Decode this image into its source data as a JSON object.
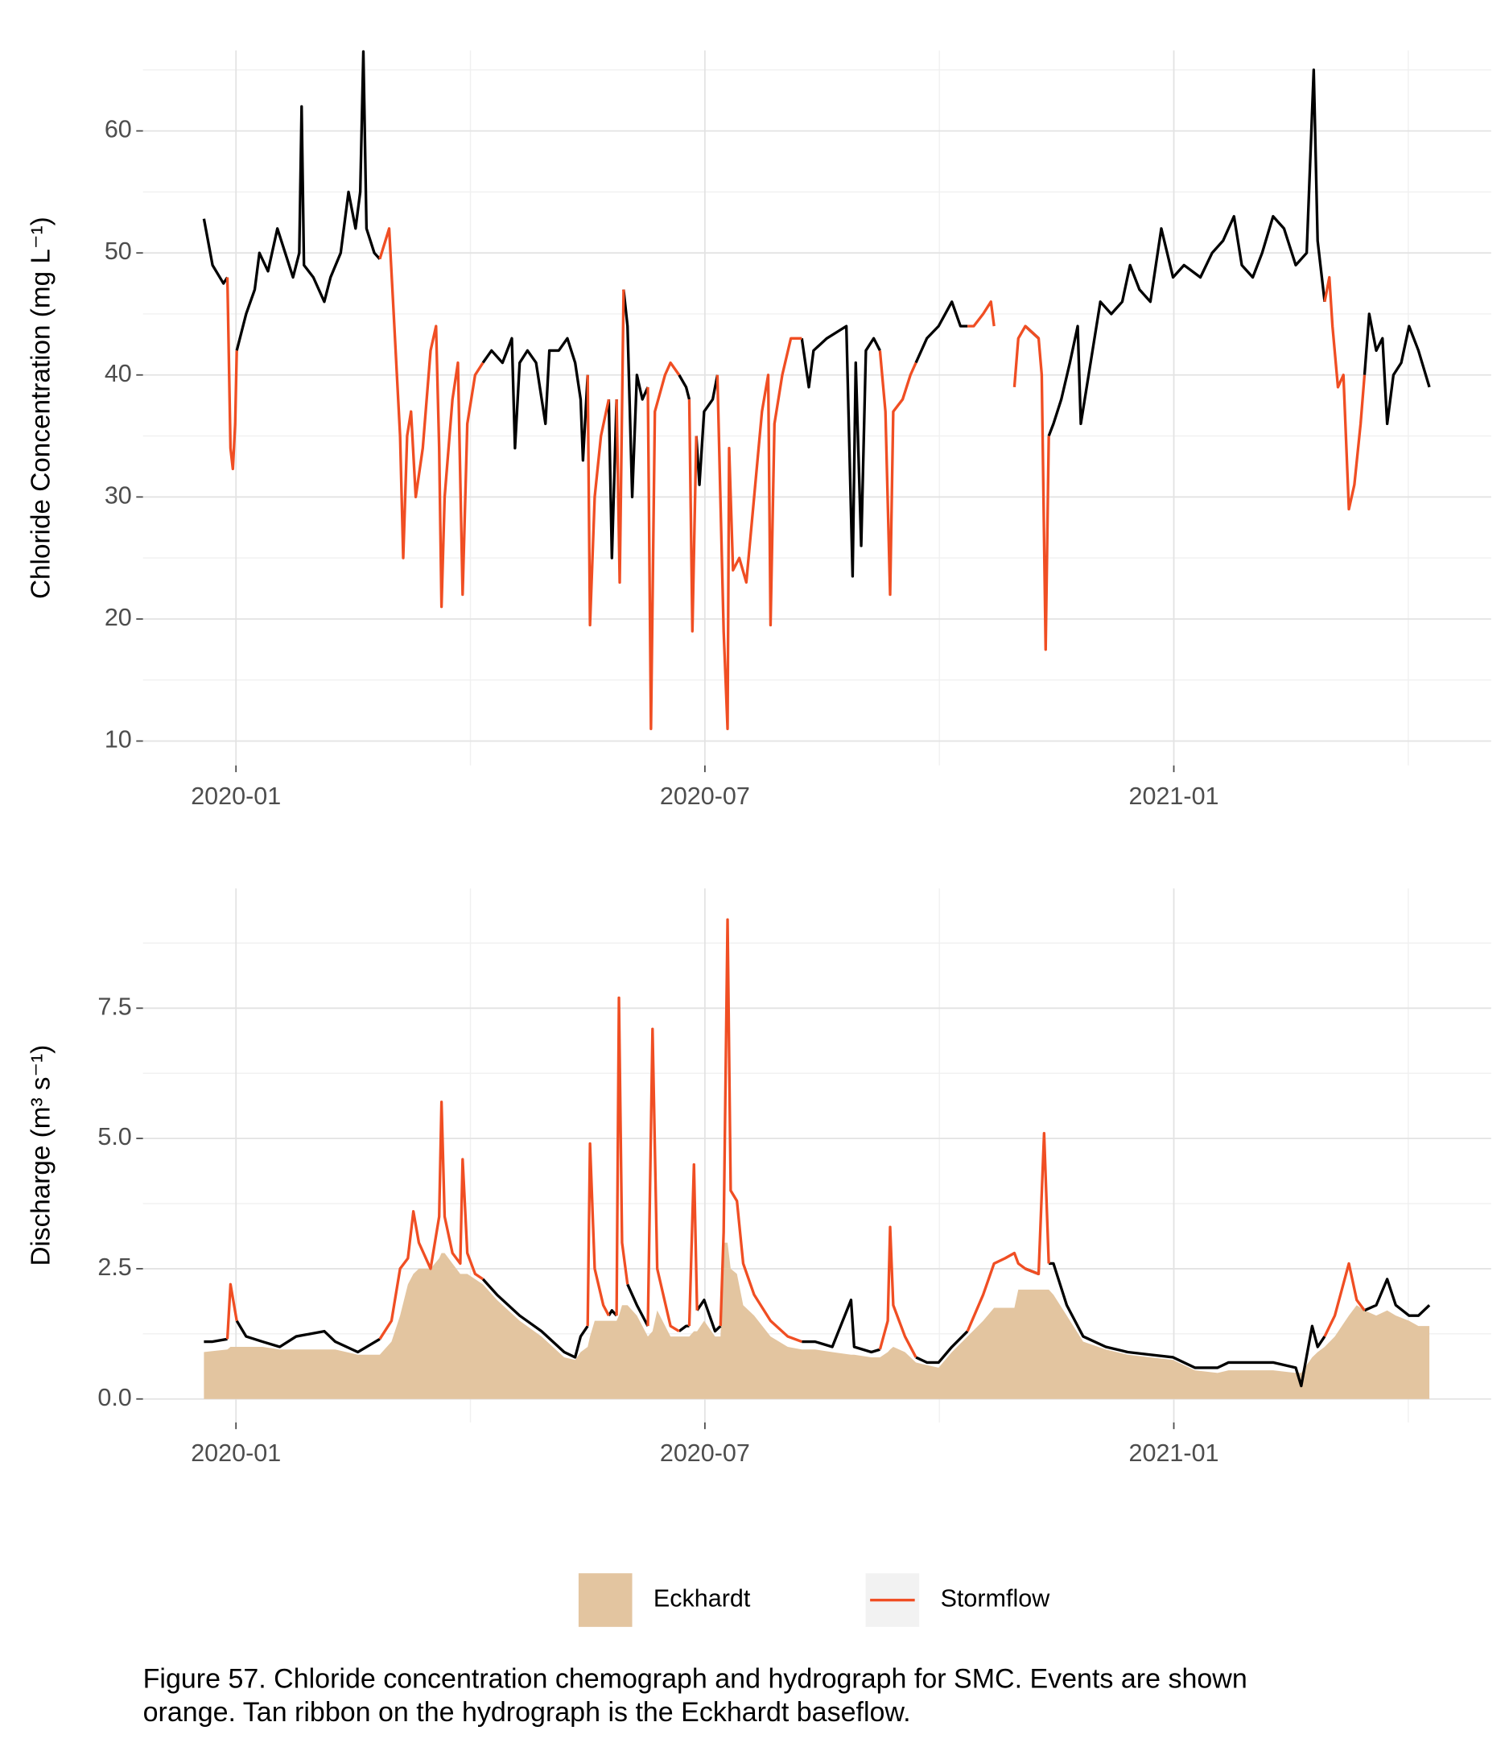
{
  "chart_data": [
    {
      "type": "line",
      "y_label": "Chloride Concentration (mg L⁻¹)",
      "xlim": [
        -1.19,
        16.06
      ],
      "xticks": [
        {
          "value": 0,
          "label": "2020-01"
        },
        {
          "value": 6,
          "label": "2020-07"
        },
        {
          "value": 12,
          "label": "2021-01"
        }
      ],
      "ylim": [
        8,
        66.6
      ],
      "yticks": [
        10,
        20,
        30,
        40,
        50,
        60
      ],
      "grid": true,
      "x": [
        -0.41,
        -0.3,
        -0.16,
        -0.11,
        -0.07,
        -0.04,
        -0.01,
        0.01,
        0.13,
        0.24,
        0.3,
        0.41,
        0.53,
        0.63,
        0.73,
        0.81,
        0.84,
        0.87,
        0.99,
        1.13,
        1.21,
        1.34,
        1.44,
        1.53,
        1.59,
        1.63,
        1.67,
        1.77,
        1.84,
        1.96,
        2.01,
        2.1,
        2.14,
        2.19,
        2.24,
        2.3,
        2.39,
        2.49,
        2.56,
        2.6,
        2.63,
        2.67,
        2.77,
        2.84,
        2.9,
        2.96,
        3.06,
        3.16,
        3.27,
        3.41,
        3.53,
        3.57,
        3.63,
        3.73,
        3.84,
        3.96,
        4.01,
        4.13,
        4.24,
        4.34,
        4.41,
        4.44,
        4.5,
        4.53,
        4.59,
        4.67,
        4.77,
        4.81,
        4.87,
        4.91,
        4.96,
        5.01,
        5.07,
        5.13,
        5.2,
        5.27,
        5.31,
        5.36,
        5.49,
        5.56,
        5.67,
        5.76,
        5.8,
        5.84,
        5.89,
        5.93,
        5.99,
        6.1,
        6.16,
        6.24,
        6.29,
        6.31,
        6.36,
        6.44,
        6.53,
        6.63,
        6.73,
        6.81,
        6.84,
        6.89,
        6.99,
        7.1,
        7.24,
        7.33,
        7.39,
        7.56,
        7.81,
        7.89,
        7.93,
        8.0,
        8.06,
        8.16,
        8.24,
        8.31,
        8.37,
        8.41,
        8.53,
        8.63,
        8.7,
        8.84,
        8.99,
        9.16,
        9.27,
        9.36,
        9.44,
        9.56,
        9.66,
        9.7,
        9.83,
        9.96,
        10.01,
        10.1,
        10.27,
        10.31,
        10.36,
        10.4,
        10.46,
        10.56,
        10.67,
        10.77,
        10.81,
        10.91,
        11.06,
        11.2,
        11.34,
        11.44,
        11.56,
        11.7,
        11.84,
        11.99,
        12.13,
        12.34,
        12.49,
        12.63,
        12.77,
        12.87,
        13.01,
        13.13,
        13.27,
        13.41,
        13.56,
        13.7,
        13.79,
        13.84,
        13.93,
        13.99,
        14.03,
        14.1,
        14.17,
        14.24,
        14.31,
        14.39,
        14.44,
        14.5,
        14.59,
        14.67,
        14.73,
        14.81,
        14.91,
        15.01,
        15.13,
        15.27
      ],
      "series": [
        {
          "color": "#000000",
          "values": [
            52.8,
            49,
            47.5,
            48,
            null,
            null,
            null,
            42,
            45,
            47,
            50,
            48.5,
            52,
            50,
            48,
            50,
            62,
            49,
            48,
            46,
            48,
            50,
            55,
            52,
            55,
            66.5,
            52,
            50,
            49.5,
            null,
            null,
            null,
            null,
            null,
            null,
            null,
            null,
            null,
            null,
            null,
            null,
            null,
            null,
            null,
            null,
            null,
            null,
            41,
            42,
            41,
            43,
            34,
            41,
            42,
            41,
            36,
            42,
            42,
            43,
            41,
            38,
            33,
            40,
            null,
            null,
            null,
            38,
            25,
            38,
            null,
            47,
            44,
            30,
            40,
            38,
            39,
            null,
            null,
            null,
            null,
            40,
            39,
            38,
            null,
            35,
            31,
            37,
            38,
            40,
            null,
            null,
            null,
            null,
            null,
            null,
            null,
            null,
            null,
            null,
            null,
            null,
            null,
            43,
            39,
            42,
            43,
            44,
            23.5,
            41,
            26,
            42,
            43,
            42,
            null,
            null,
            null,
            null,
            null,
            41,
            43,
            44,
            46,
            44,
            44,
            null,
            null,
            null,
            null,
            null,
            null,
            null,
            44,
            43,
            null,
            null,
            35,
            36,
            38,
            41,
            44,
            36,
            40,
            46,
            45,
            46,
            49,
            47,
            46,
            52,
            48,
            49,
            48,
            50,
            51,
            53,
            49,
            48,
            50,
            53,
            52,
            49,
            50,
            65,
            51,
            46,
            null,
            null,
            null,
            null,
            null,
            null,
            null,
            40,
            45,
            42,
            43,
            36,
            40,
            41,
            44,
            42,
            39
          ]
        },
        {
          "color": "#f04e23",
          "values": [
            null,
            null,
            null,
            48,
            34,
            32.3,
            36,
            42,
            null,
            null,
            null,
            null,
            null,
            null,
            null,
            null,
            null,
            null,
            null,
            null,
            null,
            null,
            null,
            null,
            null,
            null,
            null,
            null,
            49.5,
            52,
            46,
            35,
            25,
            35,
            37,
            30,
            34,
            42,
            44,
            34,
            21,
            30,
            38,
            41,
            22,
            36,
            40,
            41,
            null,
            null,
            null,
            null,
            null,
            null,
            null,
            null,
            null,
            null,
            null,
            null,
            null,
            null,
            40,
            19.5,
            30,
            35,
            38,
            null,
            38,
            23,
            47,
            null,
            null,
            null,
            null,
            39,
            11,
            37,
            40,
            41,
            40,
            null,
            38,
            19,
            35,
            null,
            null,
            null,
            40,
            19,
            11,
            34,
            24,
            25,
            23,
            30,
            37,
            40,
            19.5,
            36,
            40,
            43,
            43,
            null,
            null,
            null,
            null,
            null,
            null,
            null,
            null,
            null,
            42,
            37,
            22,
            37,
            38,
            40,
            41,
            null,
            null,
            null,
            null,
            44,
            44,
            45,
            46,
            44,
            null,
            39,
            43,
            44,
            43,
            40,
            17.5,
            35,
            null,
            null,
            null,
            null,
            null,
            null,
            null,
            null,
            null,
            null,
            null,
            null,
            null,
            null,
            null,
            null,
            null,
            null,
            null,
            null,
            null,
            null,
            null,
            null,
            null,
            null,
            null,
            null,
            46,
            48,
            44,
            39,
            40,
            29,
            31,
            36,
            40,
            null,
            null,
            null,
            null,
            null,
            null,
            null,
            null,
            null
          ]
        }
      ]
    },
    {
      "type": "line",
      "y_label": "Discharge (m³ s⁻¹)",
      "xlim": [
        -1.19,
        16.06
      ],
      "xticks": [
        {
          "value": 0,
          "label": "2020-01"
        },
        {
          "value": 6,
          "label": "2020-07"
        },
        {
          "value": 12,
          "label": "2021-01"
        }
      ],
      "ylim": [
        -0.45,
        9.8
      ],
      "yticks": [
        {
          "value": 0,
          "label": "0.0"
        },
        2.5,
        {
          "value": 5,
          "label": "5.0"
        },
        7.5
      ],
      "grid": true,
      "x": [
        -0.41,
        -0.3,
        -0.11,
        -0.07,
        0.01,
        0.13,
        0.34,
        0.56,
        0.77,
        1.13,
        1.27,
        1.56,
        1.84,
        1.99,
        2.1,
        2.2,
        2.27,
        2.34,
        2.49,
        2.6,
        2.63,
        2.67,
        2.77,
        2.87,
        2.9,
        2.96,
        3.06,
        3.16,
        3.34,
        3.63,
        3.91,
        4.2,
        4.34,
        4.41,
        4.5,
        4.53,
        4.59,
        4.7,
        4.77,
        4.81,
        4.87,
        4.9,
        4.94,
        5.01,
        5.13,
        5.27,
        5.33,
        5.39,
        5.56,
        5.67,
        5.76,
        5.8,
        5.86,
        5.9,
        5.99,
        6.13,
        6.2,
        6.24,
        6.29,
        6.33,
        6.41,
        6.49,
        6.63,
        6.84,
        7.06,
        7.24,
        7.41,
        7.63,
        7.87,
        7.91,
        8.13,
        8.24,
        8.34,
        8.37,
        8.41,
        8.56,
        8.7,
        8.84,
        8.99,
        9.16,
        9.36,
        9.56,
        9.7,
        9.84,
        9.96,
        10.01,
        10.1,
        10.27,
        10.34,
        10.4,
        10.46,
        10.63,
        10.84,
        11.13,
        11.41,
        11.7,
        11.99,
        12.27,
        12.56,
        12.7,
        12.99,
        13.27,
        13.56,
        13.63,
        13.77,
        13.84,
        13.93,
        14.06,
        14.24,
        14.34,
        14.44,
        14.59,
        14.73,
        14.84,
        15.01,
        15.13,
        15.27
      ],
      "series": [
        {
          "name": "Eckhardt",
          "type": "area",
          "color": "#e3c5a0",
          "values": [
            0.9,
            0.92,
            0.95,
            1.0,
            1.0,
            1.0,
            1.0,
            0.95,
            0.95,
            0.95,
            0.95,
            0.85,
            0.85,
            1.1,
            1.6,
            2.2,
            2.4,
            2.5,
            2.5,
            2.7,
            2.8,
            2.8,
            2.6,
            2.4,
            2.4,
            2.4,
            2.3,
            2.2,
            1.9,
            1.5,
            1.2,
            0.8,
            0.75,
            0.9,
            1.0,
            1.2,
            1.5,
            1.5,
            1.5,
            1.5,
            1.5,
            1.6,
            1.8,
            1.8,
            1.6,
            1.2,
            1.3,
            1.7,
            1.2,
            1.2,
            1.2,
            1.2,
            1.3,
            1.3,
            1.5,
            1.2,
            1.2,
            3.0,
            3.0,
            2.5,
            2.4,
            1.8,
            1.6,
            1.2,
            1.0,
            0.95,
            0.95,
            0.9,
            0.85,
            0.85,
            0.8,
            0.8,
            0.9,
            0.95,
            1.0,
            0.9,
            0.7,
            0.65,
            0.6,
            0.9,
            1.2,
            1.5,
            1.75,
            1.75,
            1.75,
            2.1,
            2.1,
            2.1,
            2.1,
            2.1,
            2.0,
            1.6,
            1.1,
            0.95,
            0.85,
            0.8,
            0.75,
            0.55,
            0.5,
            0.55,
            0.55,
            0.55,
            0.5,
            0.5,
            0.8,
            0.9,
            1.0,
            1.2,
            1.6,
            1.8,
            1.7,
            1.6,
            1.7,
            1.6,
            1.5,
            1.4,
            1.4
          ]
        },
        {
          "color": "#000000",
          "values": [
            1.1,
            1.1,
            1.15,
            null,
            1.5,
            1.2,
            1.1,
            1.0,
            1.2,
            1.3,
            1.1,
            0.9,
            1.15,
            null,
            null,
            null,
            null,
            null,
            null,
            null,
            null,
            null,
            null,
            null,
            null,
            null,
            null,
            2.3,
            2.0,
            1.6,
            1.3,
            0.9,
            0.8,
            1.2,
            1.4,
            null,
            null,
            null,
            1.6,
            1.7,
            1.6,
            null,
            null,
            2.2,
            1.8,
            1.4,
            null,
            null,
            null,
            1.3,
            1.4,
            1.4,
            null,
            1.7,
            1.9,
            1.3,
            1.4,
            null,
            null,
            null,
            null,
            null,
            null,
            null,
            null,
            1.1,
            1.1,
            1.0,
            1.9,
            1.0,
            0.9,
            0.95,
            null,
            null,
            null,
            null,
            0.8,
            0.7,
            0.7,
            1.0,
            1.3,
            null,
            null,
            null,
            null,
            null,
            2.5,
            2.4,
            null,
            2.6,
            2.6,
            1.8,
            1.2,
            1.0,
            0.9,
            0.85,
            0.8,
            0.6,
            0.6,
            0.7,
            0.7,
            0.7,
            0.6,
            0.25,
            1.4,
            1.0,
            1.2,
            null,
            null,
            null,
            1.7,
            1.8,
            2.3,
            1.8,
            1.6,
            1.6,
            1.8
          ]
        },
        {
          "name": "Stormflow",
          "color": "#f04e23",
          "values": [
            null,
            null,
            1.15,
            2.2,
            1.5,
            null,
            null,
            null,
            null,
            null,
            null,
            null,
            1.15,
            1.5,
            2.5,
            2.7,
            3.6,
            3.0,
            2.5,
            3.5,
            5.7,
            3.5,
            2.8,
            2.6,
            4.6,
            2.8,
            2.4,
            2.3,
            null,
            null,
            null,
            null,
            null,
            null,
            1.4,
            4.9,
            2.5,
            1.8,
            1.6,
            null,
            1.6,
            7.7,
            3.0,
            2.2,
            null,
            1.4,
            7.1,
            2.5,
            1.4,
            1.3,
            null,
            1.4,
            4.5,
            1.7,
            null,
            null,
            1.4,
            3.2,
            9.2,
            4.0,
            3.8,
            2.6,
            2.0,
            1.5,
            1.2,
            1.1,
            null,
            null,
            null,
            null,
            null,
            0.95,
            1.5,
            3.3,
            1.8,
            1.2,
            0.8,
            null,
            null,
            null,
            1.3,
            2.0,
            2.6,
            2.7,
            2.8,
            2.6,
            2.5,
            2.4,
            5.1,
            2.6,
            null,
            null,
            null,
            null,
            null,
            null,
            null,
            null,
            null,
            null,
            null,
            null,
            null,
            null,
            null,
            null,
            1.2,
            1.6,
            2.6,
            1.9,
            1.7,
            null,
            null,
            null,
            null,
            null,
            null
          ]
        }
      ]
    }
  ],
  "caption": [
    "Figure 57. Chloride concentration chemograph and hydrograph for SMC. Events are shown",
    "orange. Tan ribbon on the hydrograph is the Eckhardt baseflow."
  ]
}
